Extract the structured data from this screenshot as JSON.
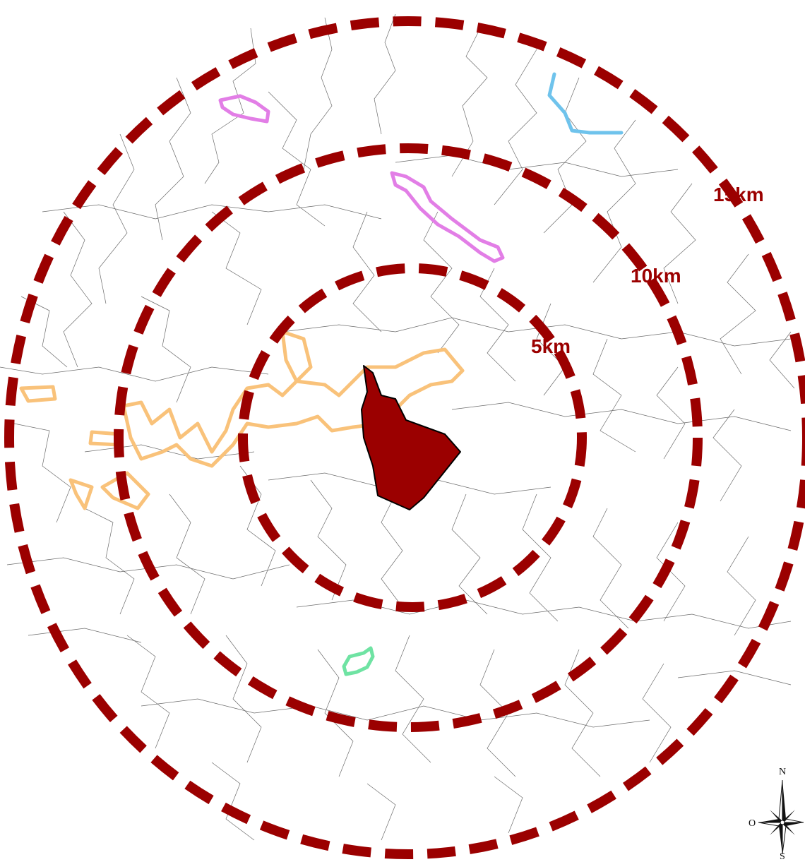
{
  "map": {
    "colors": {
      "ring": "#9b0000",
      "central_municipality": "#9b0000",
      "area_orange": "#f9c27a",
      "area_pink": "#e27ee6",
      "area_blue": "#6fc3ec",
      "area_green": "#6fe3a3",
      "boundaries": "#3a3a3a"
    },
    "rings": [
      {
        "label": "5km"
      },
      {
        "label": "10km"
      },
      {
        "label": "15km"
      }
    ],
    "compass": {
      "north": "N",
      "west": "O",
      "south": "S"
    }
  }
}
